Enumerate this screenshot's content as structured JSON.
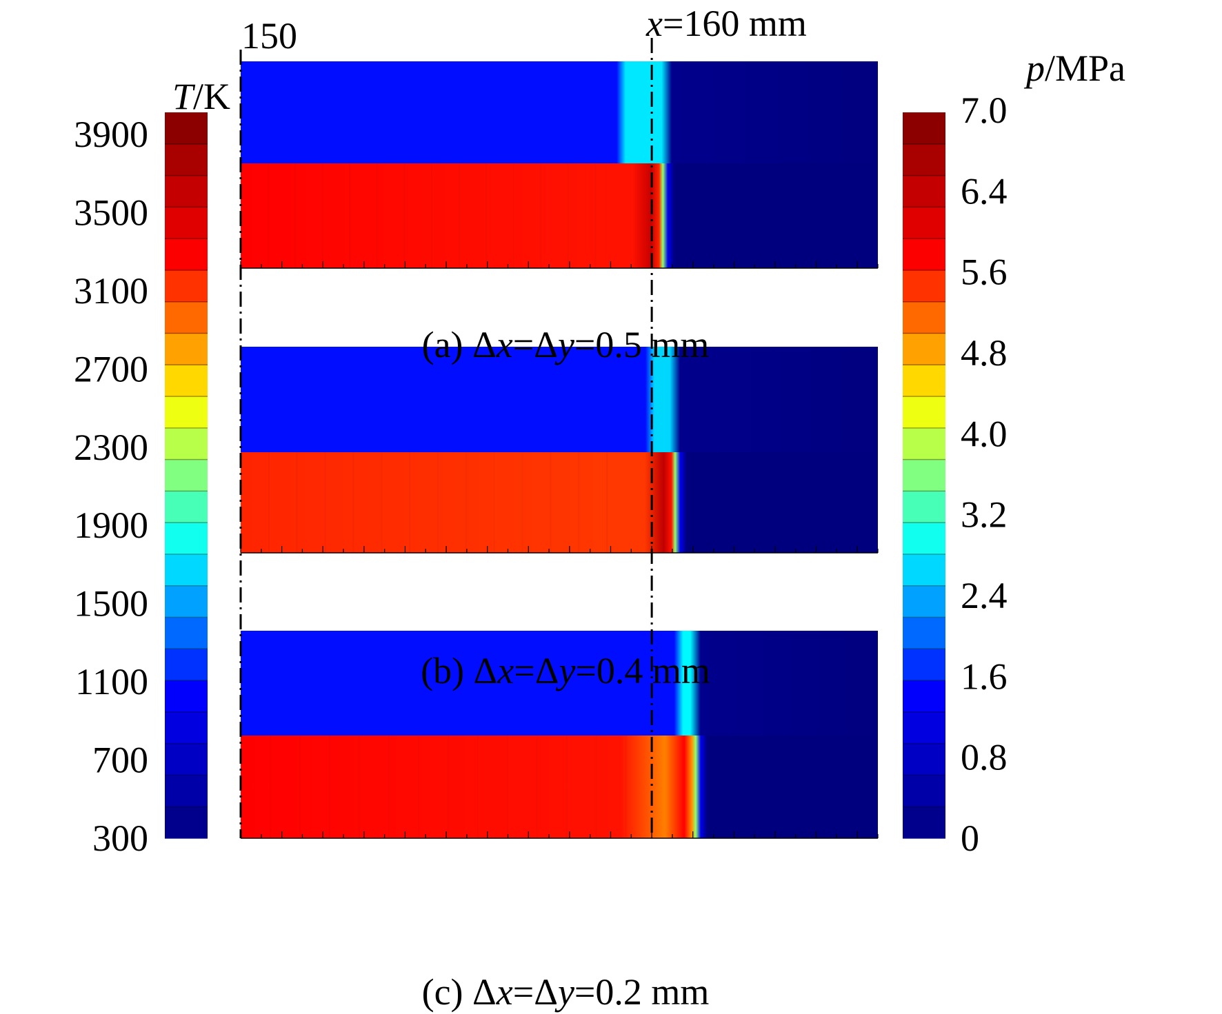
{
  "chart_data": {
    "type": "heatmap",
    "title": "",
    "top_annotations": {
      "start_x_label": "150",
      "reference_line_label": {
        "italic": "x",
        "rest": "=160 mm"
      }
    },
    "colorbars": [
      {
        "name": "temperature",
        "label": {
          "italic": "T",
          "rest": "/K"
        },
        "ticks": [
          "3900",
          "3500",
          "3100",
          "2700",
          "2300",
          "1900",
          "1500",
          "1100",
          "700",
          "300"
        ],
        "range": [
          300,
          4100
        ],
        "side": "left"
      },
      {
        "name": "pressure",
        "label": {
          "italic": "p",
          "rest": "/MPa"
        },
        "ticks": [
          "7.0",
          "6.4",
          "5.6",
          "4.8",
          "4.0",
          "3.2",
          "2.4",
          "1.6",
          "0.8",
          "0"
        ],
        "range": [
          0,
          7.0
        ],
        "side": "right"
      }
    ],
    "colormap": [
      "#00007f",
      "#0000ff",
      "#00ffff",
      "#ffff00",
      "#ff0000",
      "#7f0000"
    ],
    "x_range_mm": [
      150,
      165.5
    ],
    "reference_x_mm": 160,
    "panels": [
      {
        "id": "a",
        "caption": {
          "prefix": "(a) Δ",
          "x": "x",
          "mid": "=Δ",
          "y": "y",
          "suffix": "=0.5 mm"
        },
        "upper_field": {
          "variable": "T",
          "behind_front_K": 1100,
          "front_band_mm": [
            159.3,
            160.3
          ],
          "front_band_K": 1750,
          "ahead_K": 300
        },
        "lower_field": {
          "variable": "p",
          "behind_front_MPa": 5.5,
          "peak_MPa": 6.2,
          "front_mm": 160.3,
          "ahead_MPa": 0
        }
      },
      {
        "id": "b",
        "caption": {
          "prefix": "(b) Δ",
          "x": "x",
          "mid": "=Δ",
          "y": "y",
          "suffix": "=0.4 mm"
        },
        "upper_field": {
          "variable": "T",
          "behind_front_K": 1100,
          "front_band_mm": [
            160.0,
            160.5
          ],
          "front_band_K": 1700,
          "ahead_K": 300
        },
        "lower_field": {
          "variable": "p",
          "behind_front_MPa": 5.3,
          "peak_MPa": 6.3,
          "front_mm": 160.6,
          "ahead_MPa": 0
        }
      },
      {
        "id": "c",
        "caption": {
          "prefix": "(c) Δ",
          "x": "x",
          "mid": "=Δ",
          "y": "y",
          "suffix": "=0.2 mm"
        },
        "upper_field": {
          "variable": "T",
          "behind_front_K": 1100,
          "front_band_mm": [
            160.7,
            161.0
          ],
          "front_band_K": 1800,
          "ahead_K": 300
        },
        "lower_field": {
          "variable": "p",
          "behind_front_MPa": 5.5,
          "near_front_MPa": 4.9,
          "peak_MPa": 5.6,
          "front_mm": 161.1,
          "ahead_MPa": 0
        }
      }
    ],
    "grid": false,
    "legend": "colorbars left and right"
  }
}
